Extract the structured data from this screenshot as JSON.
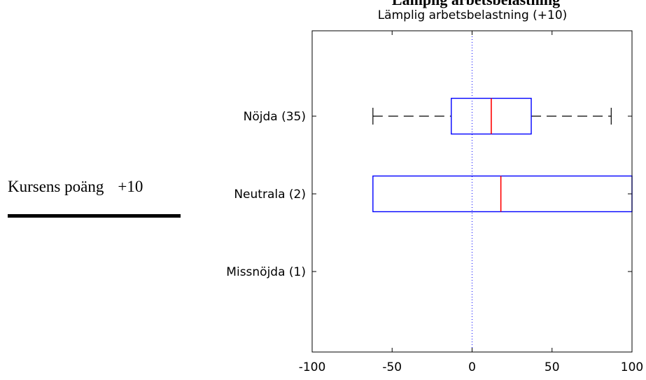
{
  "heading": "Lämplig arbetsbelastning",
  "side_label": {
    "text": "Kursens poäng",
    "value": "+10"
  },
  "chart_data": {
    "type": "boxplot",
    "title": "Lämplig arbetsbelastning (+10)",
    "xlim": [
      -100,
      100
    ],
    "xticks": [
      -100,
      -50,
      0,
      50,
      100
    ],
    "xtick_labels": [
      "-100",
      "-50",
      "0",
      "50",
      "100"
    ],
    "reference_line_x": 0,
    "grid": false,
    "categories": [
      "Nöjda (35)",
      "Neutrala (2)",
      "Missnöjda (1)"
    ],
    "boxes": [
      {
        "category": "Nöjda (35)",
        "whisker_low": -62,
        "q1": -13,
        "median": 12,
        "q3": 37,
        "whisker_high": 87
      },
      {
        "category": "Neutrala (2)",
        "whisker_low": -62,
        "q1": -62,
        "median": 18,
        "q3": 100,
        "whisker_high": 100
      },
      {
        "category": "Missnöjda (1)"
      }
    ],
    "colors": {
      "box": "#0000ff",
      "median": "#ff0000",
      "whisker": "#000000",
      "reference_line": "#0000ff"
    }
  }
}
